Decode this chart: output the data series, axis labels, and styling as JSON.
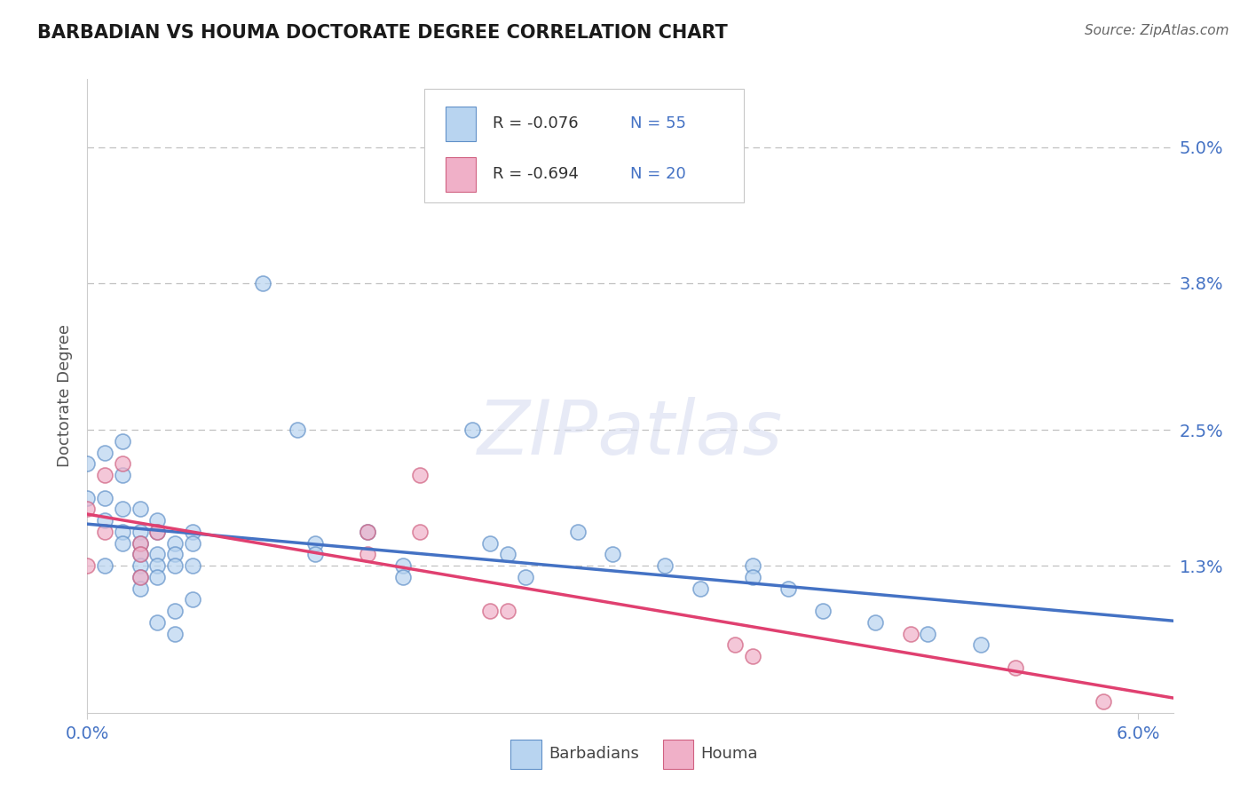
{
  "title": "BARBADIAN VS HOUMA DOCTORATE DEGREE CORRELATION CHART",
  "source": "Source: ZipAtlas.com",
  "ylabel": "Doctorate Degree",
  "ytick_labels": [
    "5.0%",
    "3.8%",
    "2.5%",
    "1.3%"
  ],
  "ytick_vals": [
    0.05,
    0.038,
    0.025,
    0.013
  ],
  "xtick_labels": [
    "0.0%",
    "6.0%"
  ],
  "xtick_vals": [
    0.0,
    0.06
  ],
  "xlim": [
    0.0,
    0.062
  ],
  "ylim": [
    0.0,
    0.056
  ],
  "legend_r1": "R = -0.076",
  "legend_n1": "N = 55",
  "legend_r2": "R = -0.694",
  "legend_n2": "N = 20",
  "legend_label1": "Barbadians",
  "legend_label2": "Houma",
  "color_blue_fill": "#b8d4f0",
  "color_blue_edge": "#6090c8",
  "color_pink_fill": "#f0b0c8",
  "color_pink_edge": "#d06080",
  "color_blue_line": "#4472c4",
  "color_pink_line": "#e04070",
  "color_text_dark": "#333333",
  "color_text_blue": "#4472c4",
  "barbadian_x": [
    0.0,
    0.0,
    0.001,
    0.001,
    0.001,
    0.001,
    0.002,
    0.002,
    0.002,
    0.002,
    0.002,
    0.003,
    0.003,
    0.003,
    0.003,
    0.003,
    0.003,
    0.003,
    0.004,
    0.004,
    0.004,
    0.004,
    0.004,
    0.004,
    0.005,
    0.005,
    0.005,
    0.005,
    0.005,
    0.006,
    0.006,
    0.006,
    0.006,
    0.01,
    0.012,
    0.013,
    0.013,
    0.016,
    0.018,
    0.018,
    0.022,
    0.023,
    0.024,
    0.025,
    0.028,
    0.03,
    0.033,
    0.035,
    0.038,
    0.038,
    0.04,
    0.042,
    0.045,
    0.048,
    0.051
  ],
  "barbadian_y": [
    0.022,
    0.019,
    0.023,
    0.019,
    0.017,
    0.013,
    0.024,
    0.021,
    0.018,
    0.016,
    0.015,
    0.018,
    0.016,
    0.015,
    0.014,
    0.013,
    0.012,
    0.011,
    0.017,
    0.016,
    0.014,
    0.013,
    0.012,
    0.008,
    0.015,
    0.014,
    0.013,
    0.009,
    0.007,
    0.016,
    0.015,
    0.013,
    0.01,
    0.038,
    0.025,
    0.015,
    0.014,
    0.016,
    0.013,
    0.012,
    0.025,
    0.015,
    0.014,
    0.012,
    0.016,
    0.014,
    0.013,
    0.011,
    0.013,
    0.012,
    0.011,
    0.009,
    0.008,
    0.007,
    0.006
  ],
  "houma_x": [
    0.0,
    0.0,
    0.001,
    0.001,
    0.002,
    0.003,
    0.003,
    0.003,
    0.004,
    0.016,
    0.016,
    0.019,
    0.019,
    0.023,
    0.024,
    0.037,
    0.038,
    0.047,
    0.053,
    0.058
  ],
  "houma_y": [
    0.018,
    0.013,
    0.021,
    0.016,
    0.022,
    0.015,
    0.014,
    0.012,
    0.016,
    0.016,
    0.014,
    0.021,
    0.016,
    0.009,
    0.009,
    0.006,
    0.005,
    0.007,
    0.004,
    0.001
  ]
}
